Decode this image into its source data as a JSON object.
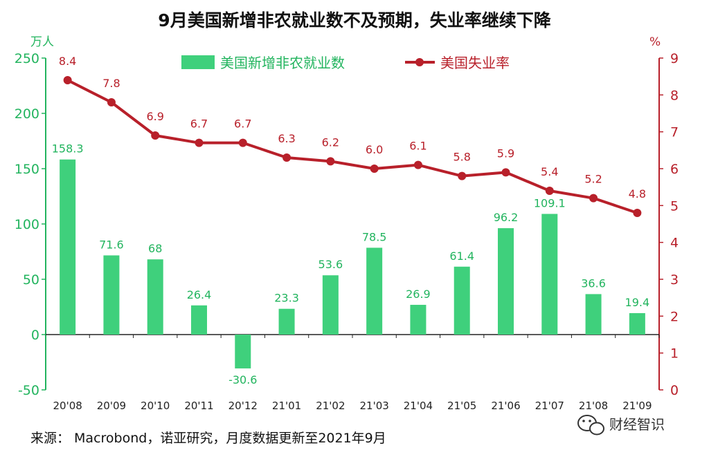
{
  "colors": {
    "bar": "#3fd07c",
    "line": "#b8202a",
    "left_axis": "#22b45e",
    "right_axis": "#b8202a"
  },
  "watermark": {
    "icon": "wechat-icon",
    "text": "财经智识"
  },
  "chart_data": {
    "type": "bar",
    "title": "9月美国新增非农就业数不及预期，失业率继续下降",
    "categories": [
      "20'08",
      "20'09",
      "20'10",
      "20'11",
      "20'12",
      "21'01",
      "21'02",
      "21'03",
      "21'04",
      "21'05",
      "21'06",
      "21'07",
      "21'08",
      "21'09"
    ],
    "series": [
      {
        "name": "美国新增非农就业数",
        "type": "bar",
        "axis": "left",
        "values": [
          158.3,
          71.6,
          68,
          26.4,
          -30.6,
          23.3,
          53.6,
          78.5,
          26.9,
          61.4,
          96.2,
          109.1,
          36.6,
          19.4
        ],
        "value_labels": [
          "158.3",
          "71.6",
          "68",
          "26.4",
          "-30.6",
          "23.3",
          "53.6",
          "78.5",
          "26.9",
          "61.4",
          "96.2",
          "109.1",
          "36.6",
          "19.4"
        ]
      },
      {
        "name": "美国失业率",
        "type": "line",
        "axis": "right",
        "values": [
          8.4,
          7.8,
          6.9,
          6.7,
          6.7,
          6.3,
          6.2,
          6.0,
          6.1,
          5.8,
          5.9,
          5.4,
          5.2,
          4.8
        ],
        "value_labels": [
          "8.4",
          "7.8",
          "6.9",
          "6.7",
          "6.7",
          "6.3",
          "6.2",
          "6.0",
          "6.1",
          "5.8",
          "5.9",
          "5.4",
          "5.2",
          "4.8"
        ]
      }
    ],
    "y_left": {
      "unit": "万人",
      "ylim": [
        -50,
        250
      ],
      "ticks": [
        250,
        200,
        150,
        100,
        50,
        0,
        -50
      ],
      "tick_labels": [
        "250",
        "200",
        "150",
        "100",
        "50",
        "0",
        "-50"
      ]
    },
    "y_right": {
      "unit": "%",
      "ylim": [
        0,
        9
      ],
      "ticks": [
        9,
        8,
        7,
        6,
        5,
        4,
        3,
        2,
        1,
        0
      ],
      "tick_labels": [
        "9",
        "8",
        "7",
        "6",
        "5",
        "4",
        "3",
        "2",
        "1",
        "0"
      ]
    },
    "legend_position": "top",
    "grid": false,
    "source": "来源： Macrobond，诺亚研究，月度数据更新至2021年9月"
  }
}
